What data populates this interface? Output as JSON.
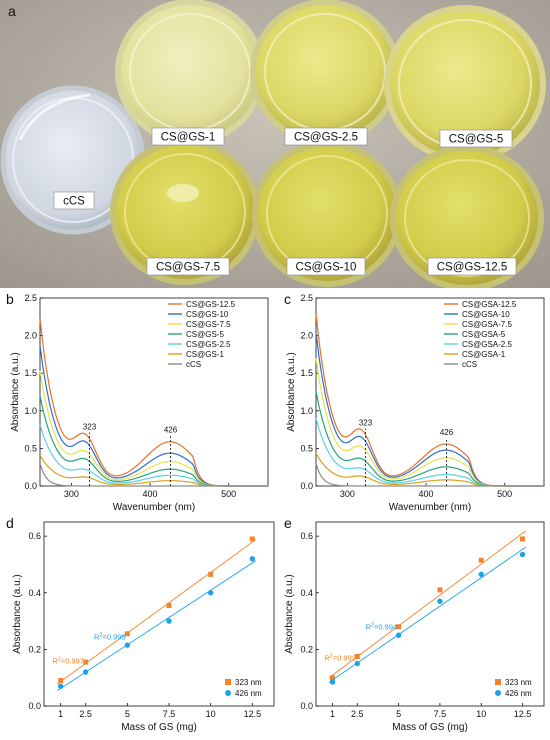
{
  "figure": {
    "panel_a": {
      "letter": "a",
      "dishes": [
        "cCS",
        "CS@GS-1",
        "CS@GS-2.5",
        "CS@GS-5",
        "CS@GS-7.5",
        "CS@GS-10",
        "CS@GS-12.5"
      ]
    },
    "colors": {
      "s12_5": "#e8702a",
      "s10": "#2f6fd1",
      "s7_5": "#e9e24a",
      "s5": "#2aa37a",
      "s2_5": "#5ad0e6",
      "s1": "#d8a21c",
      "ccs": "#8c8c8c",
      "fit323": "#f5832a",
      "fit426": "#1aa3e8"
    }
  },
  "chart_data": [
    {
      "type": "line",
      "panel": "b",
      "xlabel": "Wavenumber (nm)",
      "ylabel": "Absorbance (a.u.)",
      "xlim": [
        260,
        550
      ],
      "ylim": [
        0,
        2.5
      ],
      "xticks": [
        "300",
        "400",
        "500"
      ],
      "yticks": [
        "0.0",
        "0.5",
        "1.0",
        "1.5",
        "2.0",
        "2.5"
      ],
      "annotations": [
        "323",
        "426"
      ],
      "legend_position": "top-right",
      "series": [
        {
          "name": "CS@GS-12.5",
          "values": [
            2.28,
            0.52,
            0.58,
            0.27
          ]
        },
        {
          "name": "CS@GS-10",
          "values": [
            1.92,
            0.45,
            0.43,
            0.22
          ]
        },
        {
          "name": "CS@GS-7.5",
          "values": [
            1.58,
            0.35,
            0.32,
            0.17
          ]
        },
        {
          "name": "CS@GS-5",
          "values": [
            1.24,
            0.27,
            0.22,
            0.13
          ]
        },
        {
          "name": "CS@GS-2.5",
          "values": [
            0.84,
            0.16,
            0.14,
            0.08
          ]
        },
        {
          "name": "CS@GS-1",
          "values": [
            0.42,
            0.09,
            0.07,
            0.04
          ]
        },
        {
          "name": "cCS",
          "values": [
            0.3,
            0.0,
            0.0,
            0.0
          ]
        }
      ]
    },
    {
      "type": "line",
      "panel": "c",
      "xlabel": "Wavenumber (nm)",
      "ylabel": "Absorbance (a.u.)",
      "xlim": [
        260,
        550
      ],
      "ylim": [
        0,
        2.5
      ],
      "xticks": [
        "300",
        "400",
        "500"
      ],
      "yticks": [
        "0.0",
        "0.5",
        "1.0",
        "1.5",
        "2.0",
        "2.5"
      ],
      "annotations": [
        "323",
        "426"
      ],
      "legend_position": "top-right",
      "series": [
        {
          "name": "CS@GSA-12.5",
          "values": [
            2.35,
            0.58,
            0.55,
            0.27
          ]
        },
        {
          "name": "CS@GSA-10",
          "values": [
            2.1,
            0.5,
            0.47,
            0.23
          ]
        },
        {
          "name": "CS@GSA-7.5",
          "values": [
            1.75,
            0.4,
            0.37,
            0.18
          ]
        },
        {
          "name": "CS@GSA-5",
          "values": [
            1.3,
            0.27,
            0.25,
            0.13
          ]
        },
        {
          "name": "CS@GSA-2.5",
          "values": [
            0.93,
            0.17,
            0.15,
            0.08
          ]
        },
        {
          "name": "CS@GSA-1",
          "values": [
            0.45,
            0.1,
            0.08,
            0.04
          ]
        },
        {
          "name": "cCS",
          "values": [
            0.3,
            0.0,
            0.0,
            0.0
          ]
        }
      ]
    },
    {
      "type": "scatter",
      "panel": "d",
      "xlabel": "Mass of GS (mg)",
      "ylabel": "Absorbance (a.u.)",
      "categories": [
        "1",
        "2.5",
        "5",
        "7.5",
        "10",
        "12.5"
      ],
      "x": [
        1,
        2.5,
        5,
        7.5,
        10,
        12.5
      ],
      "ylim": [
        0,
        0.65
      ],
      "yticks": [
        "0.0",
        "0.2",
        "0.4",
        "0.6"
      ],
      "legend_position": "bottom-right",
      "series": [
        {
          "name": "323 nm",
          "values": [
            0.09,
            0.155,
            0.255,
            0.355,
            0.465,
            0.59
          ],
          "r2_label": "R",
          "r2_sup": "2",
          "r2_value": "=0.997"
        },
        {
          "name": "426 nm",
          "values": [
            0.07,
            0.12,
            0.215,
            0.3,
            0.4,
            0.52
          ],
          "r2_label": "R",
          "r2_sup": "2",
          "r2_value": "=0.995"
        }
      ]
    },
    {
      "type": "scatter",
      "panel": "e",
      "xlabel": "Mass of GS (mg)",
      "ylabel": "Absorbance (a.u.)",
      "categories": [
        "1",
        "2.5",
        "5",
        "7.5",
        "10",
        "12.5"
      ],
      "x": [
        1,
        2.5,
        5,
        7.5,
        10,
        12.5
      ],
      "ylim": [
        0,
        0.65
      ],
      "yticks": [
        "0.0",
        "0.2",
        "0.4",
        "0.6"
      ],
      "legend_position": "bottom-right",
      "series": [
        {
          "name": "323 nm",
          "values": [
            0.1,
            0.175,
            0.28,
            0.41,
            0.515,
            0.59
          ],
          "r2_label": "R",
          "r2_sup": "2",
          "r2_value": "=0.992"
        },
        {
          "name": "426 nm",
          "values": [
            0.085,
            0.15,
            0.25,
            0.37,
            0.465,
            0.535
          ],
          "r2_label": "R",
          "r2_sup": "2",
          "r2_value": "=0.994"
        }
      ]
    }
  ]
}
